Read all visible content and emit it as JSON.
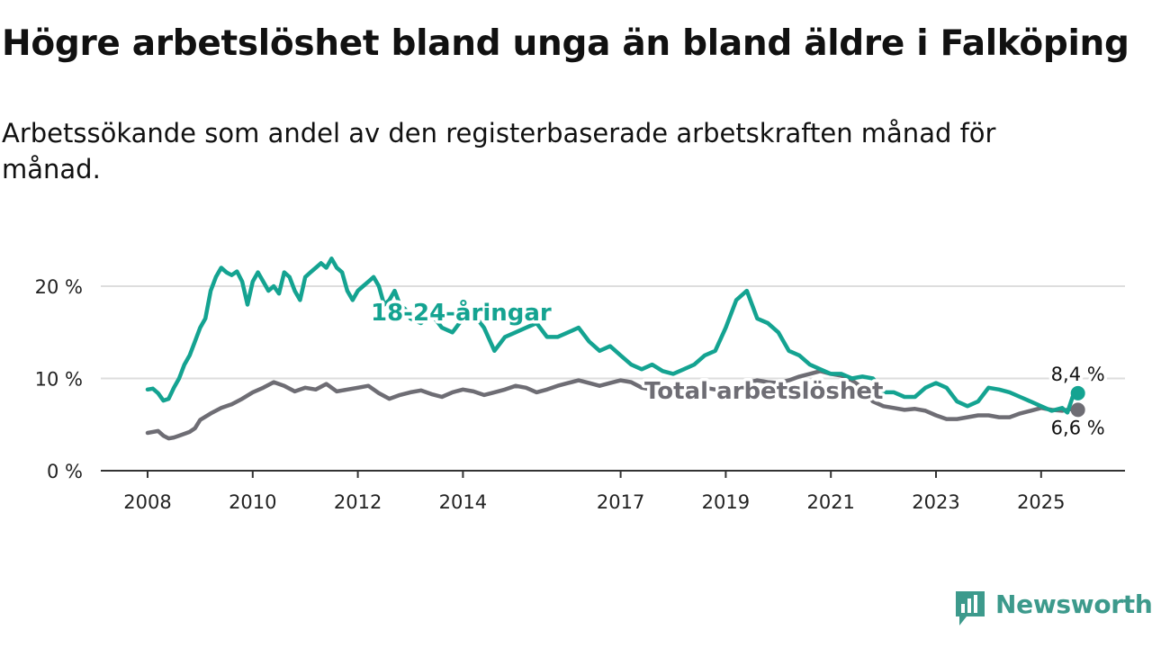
{
  "title": "Högre arbetslöshet bland unga än bland äldre i Falköping",
  "subtitle": "Arbetssökande som andel av den registerbaserade arbetskraften månad för månad.",
  "brand": {
    "name": "Newsworthy"
  },
  "colors": {
    "youth": "#14a391",
    "total": "#6e6d74",
    "grid": "#dddddd",
    "axis": "#333333",
    "brand": "#3d9a8c"
  },
  "chart_data": {
    "type": "line",
    "xlabel": "",
    "ylabel": "",
    "x_range": [
      2007.7,
      2025.9
    ],
    "ylim": [
      0,
      20
    ],
    "y_ticks": [
      0,
      10,
      20
    ],
    "y_tick_labels": [
      "0 %",
      "10 %",
      "20 %"
    ],
    "x_ticks": [
      2008,
      2010,
      2012,
      2014,
      2017,
      2019,
      2021,
      2023,
      2025
    ],
    "x_tick_labels": [
      "2008",
      "2010",
      "2012",
      "2014",
      "2017",
      "2019",
      "2021",
      "2023",
      "2025"
    ],
    "grid": true,
    "series": [
      {
        "name": "18-24-åringar",
        "label": "18-24-åringar",
        "end_label": "8,4 %",
        "x": [
          2008.0,
          2008.1,
          2008.2,
          2008.3,
          2008.4,
          2008.5,
          2008.6,
          2008.7,
          2008.8,
          2008.9,
          2009.0,
          2009.1,
          2009.2,
          2009.3,
          2009.4,
          2009.5,
          2009.6,
          2009.7,
          2009.8,
          2009.9,
          2010.0,
          2010.1,
          2010.2,
          2010.3,
          2010.4,
          2010.5,
          2010.6,
          2010.7,
          2010.8,
          2010.9,
          2011.0,
          2011.1,
          2011.2,
          2011.3,
          2011.4,
          2011.5,
          2011.6,
          2011.7,
          2011.8,
          2011.9,
          2012.0,
          2012.1,
          2012.2,
          2012.3,
          2012.4,
          2012.5,
          2012.6,
          2012.7,
          2012.8,
          2012.9,
          2013.0,
          2013.2,
          2013.4,
          2013.6,
          2013.8,
          2014.0,
          2014.2,
          2014.4,
          2014.6,
          2014.8,
          2015.0,
          2015.2,
          2015.4,
          2015.6,
          2015.8,
          2016.0,
          2016.2,
          2016.4,
          2016.6,
          2016.8,
          2017.0,
          2017.2,
          2017.4,
          2017.6,
          2017.8,
          2018.0,
          2018.2,
          2018.4,
          2018.6,
          2018.8,
          2019.0,
          2019.2,
          2019.4,
          2019.6,
          2019.8,
          2020.0,
          2020.2,
          2020.4,
          2020.6,
          2020.8,
          2021.0,
          2021.2,
          2021.4,
          2021.6,
          2021.8,
          2022.0,
          2022.2,
          2022.4,
          2022.6,
          2022.8,
          2023.0,
          2023.2,
          2023.4,
          2023.6,
          2023.8,
          2024.0,
          2024.2,
          2024.4,
          2024.6,
          2024.8,
          2025.0,
          2025.2,
          2025.4,
          2025.5,
          2025.6,
          2025.7
        ],
        "values": [
          8.8,
          8.9,
          8.4,
          7.6,
          7.8,
          9.0,
          10.0,
          11.5,
          12.5,
          14.0,
          15.5,
          16.5,
          19.5,
          21.0,
          22.0,
          21.5,
          21.2,
          21.6,
          20.5,
          18.0,
          20.5,
          21.5,
          20.5,
          19.5,
          20.0,
          19.2,
          21.5,
          21.0,
          19.5,
          18.5,
          21.0,
          21.5,
          22.0,
          22.5,
          22.0,
          23.0,
          22.0,
          21.5,
          19.5,
          18.5,
          19.5,
          20.0,
          20.5,
          21.0,
          20.0,
          18.0,
          18.5,
          19.5,
          18.0,
          17.5,
          16.5,
          16.0,
          17.0,
          15.5,
          15.0,
          16.5,
          17.0,
          15.5,
          13.0,
          14.5,
          15.0,
          15.5,
          16.0,
          14.5,
          14.5,
          15.0,
          15.5,
          14.0,
          13.0,
          13.5,
          12.5,
          11.5,
          11.0,
          11.5,
          10.8,
          10.5,
          11.0,
          11.5,
          12.5,
          13.0,
          15.5,
          18.5,
          19.5,
          16.5,
          16.0,
          15.0,
          13.0,
          12.5,
          11.5,
          11.0,
          10.5,
          10.5,
          10.0,
          10.2,
          10.0,
          8.5,
          8.5,
          8.0,
          8.0,
          9.0,
          9.5,
          9.0,
          7.5,
          7.0,
          7.5,
          9.0,
          8.8,
          8.5,
          8.0,
          7.5,
          7.0,
          6.5,
          6.8,
          6.3,
          8.0,
          8.4
        ]
      },
      {
        "name": "Total arbetslöshet",
        "label": "Total arbetslöshet",
        "end_label": "6,6 %",
        "x": [
          2008.0,
          2008.1,
          2008.2,
          2008.3,
          2008.4,
          2008.5,
          2008.6,
          2008.7,
          2008.8,
          2008.9,
          2009.0,
          2009.2,
          2009.4,
          2009.6,
          2009.8,
          2010.0,
          2010.2,
          2010.4,
          2010.6,
          2010.8,
          2011.0,
          2011.2,
          2011.4,
          2011.6,
          2011.8,
          2012.0,
          2012.2,
          2012.4,
          2012.6,
          2012.8,
          2013.0,
          2013.2,
          2013.4,
          2013.6,
          2013.8,
          2014.0,
          2014.2,
          2014.4,
          2014.6,
          2014.8,
          2015.0,
          2015.2,
          2015.4,
          2015.6,
          2015.8,
          2016.0,
          2016.2,
          2016.4,
          2016.6,
          2016.8,
          2017.0,
          2017.2,
          2017.4,
          2017.6,
          2017.8,
          2018.0,
          2018.2,
          2018.4,
          2018.6,
          2018.8,
          2019.0,
          2019.2,
          2019.4,
          2019.6,
          2019.8,
          2020.0,
          2020.2,
          2020.4,
          2020.6,
          2020.8,
          2021.0,
          2021.2,
          2021.4,
          2021.6,
          2021.8,
          2022.0,
          2022.2,
          2022.4,
          2022.6,
          2022.8,
          2023.0,
          2023.2,
          2023.4,
          2023.6,
          2023.8,
          2024.0,
          2024.2,
          2024.4,
          2024.6,
          2024.8,
          2025.0,
          2025.2,
          2025.4,
          2025.6,
          2025.7
        ],
        "values": [
          4.1,
          4.2,
          4.3,
          3.8,
          3.5,
          3.6,
          3.8,
          4.0,
          4.2,
          4.6,
          5.5,
          6.2,
          6.8,
          7.2,
          7.8,
          8.5,
          9.0,
          9.6,
          9.2,
          8.6,
          9.0,
          8.8,
          9.4,
          8.6,
          8.8,
          9.0,
          9.2,
          8.4,
          7.8,
          8.2,
          8.5,
          8.7,
          8.3,
          8.0,
          8.5,
          8.8,
          8.6,
          8.2,
          8.5,
          8.8,
          9.2,
          9.0,
          8.5,
          8.8,
          9.2,
          9.5,
          9.8,
          9.5,
          9.2,
          9.5,
          9.8,
          9.6,
          9.0,
          8.8,
          8.7,
          8.5,
          8.6,
          8.8,
          9.0,
          8.8,
          8.8,
          9.0,
          9.5,
          9.8,
          9.6,
          9.5,
          9.8,
          10.2,
          10.5,
          10.8,
          10.5,
          10.3,
          9.8,
          9.0,
          7.5,
          7.0,
          6.8,
          6.6,
          6.7,
          6.5,
          6.0,
          5.6,
          5.6,
          5.8,
          6.0,
          6.0,
          5.8,
          5.8,
          6.2,
          6.5,
          6.8,
          6.6,
          6.5,
          6.7,
          6.6
        ]
      }
    ]
  }
}
